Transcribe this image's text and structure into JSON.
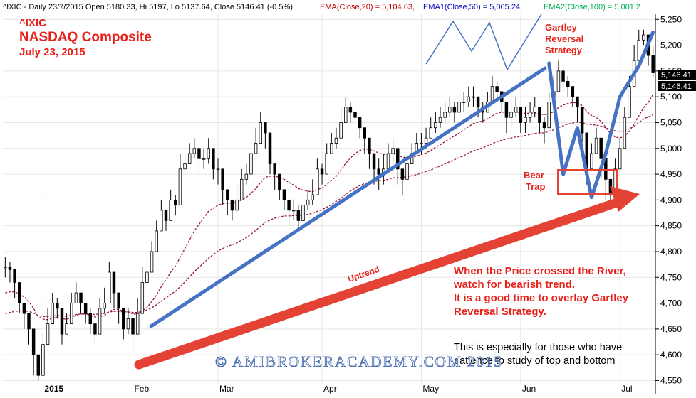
{
  "header": {
    "symbol": "^IXIC - Daily 23/7/2015 Open 5180.33, Hi 5197, Lo 5137.64, Close 5146.41 (-0.5%)",
    "ema20": "EMA(Close,20) = 5,104.63,",
    "ema50": "EMA1(Close,50) = 5,065.24,",
    "ema100": "EMA2(Close,100) = 5,001.2"
  },
  "title": {
    "ticker": "^IXIC",
    "name": "NASDAQ Composite",
    "date": "July 23, 2015"
  },
  "annotations": {
    "gartley_line1": "Gartley",
    "gartley_line2": "Reversal",
    "gartley_line3": "Strategy",
    "bear_line1": "Bear",
    "bear_line2": "Trap",
    "uptrend": "Uptrend",
    "river_1": "When the Price crossed the River,",
    "river_2": "watch for bearish trend.",
    "river_3": "It is a good time to overlay Gartley",
    "river_4": "Reversal Strategy.",
    "patience_1": "This is especially for those who have",
    "patience_2": "patience to study of top and bottom",
    "watermark": "© AMIBROKERACADEMY.COM 2015",
    "price_label_1": "5,146.41",
    "price_label_2": "5,146.41"
  },
  "colors": {
    "ema20": "#c00000",
    "ema50": "#0000c0",
    "ema100": "#00b050",
    "trend_blue": "#4472c4",
    "arrow_red": "#e34234",
    "annotation_red": "#e8201a",
    "ema_line": "#9b1b3a"
  },
  "chart_data": {
    "type": "candlestick",
    "title": "NASDAQ Composite",
    "y_axis_side": "right",
    "ylim": [
      4530,
      5260
    ],
    "y_ticks": [
      4550,
      4600,
      4650,
      4700,
      4750,
      4800,
      4850,
      4900,
      4950,
      5000,
      5050,
      5100,
      5150,
      5200,
      5250
    ],
    "y_tick_labels": [
      "4,550",
      "4,600",
      "4,650",
      "4,700",
      "4,750",
      "4,800",
      "4,850",
      "4,900",
      "4,950",
      "5,000",
      "5,050",
      "5,100",
      "5,150",
      "5,200",
      "5,250"
    ],
    "x_labels": [
      "2015",
      "Feb",
      "Mar",
      "Apr",
      "May",
      "Jun",
      "Jul"
    ],
    "x_label_index": [
      8,
      27,
      45,
      67,
      88,
      109,
      130
    ],
    "grid": true,
    "last_close": 5146.41,
    "closes": [
      4770,
      4765,
      4740,
      4700,
      4680,
      4650,
      4600,
      4560,
      4620,
      4660,
      4700,
      4690,
      4640,
      4660,
      4700,
      4720,
      4700,
      4680,
      4660,
      4640,
      4690,
      4700,
      4760,
      4720,
      4690,
      4650,
      4670,
      4640,
      4680,
      4740,
      4760,
      4800,
      4840,
      4880,
      4860,
      4900,
      4890,
      4960,
      4970,
      4990,
      5000,
      4980,
      4980,
      5000,
      4960,
      4960,
      4920,
      4900,
      4880,
      4900,
      4940,
      4950,
      4990,
      5010,
      5050,
      5030,
      4970,
      4950,
      4920,
      4900,
      4880,
      4880,
      4860,
      4890,
      4900,
      4910,
      4960,
      4950,
      4990,
      5010,
      5020,
      5050,
      5080,
      5070,
      5060,
      5040,
      5020,
      4990,
      4960,
      4950,
      4960,
      4990,
      5000,
      4960,
      4940,
      4970,
      4990,
      5010,
      5010,
      5020,
      5040,
      5050,
      5060,
      5070,
      5080,
      5070,
      5090,
      5090,
      5100,
      5100,
      5080,
      5070,
      5090,
      5120,
      5110,
      5090,
      5060,
      5070,
      5080,
      5050,
      5060,
      5070,
      5080,
      5050,
      5040,
      5090,
      5110,
      5150,
      5130,
      5120,
      5100,
      5080,
      5030,
      4960,
      4990,
      5020,
      4980,
      4940,
      4910,
      4960,
      5000,
      5060,
      5120,
      5170,
      5210,
      5220,
      5180,
      5146.41
    ],
    "highs": [
      4790,
      4780,
      4760,
      4720,
      4700,
      4670,
      4630,
      4600,
      4640,
      4690,
      4720,
      4710,
      4670,
      4680,
      4720,
      4740,
      4720,
      4700,
      4690,
      4660,
      4710,
      4730,
      4780,
      4750,
      4700,
      4680,
      4690,
      4670,
      4710,
      4770,
      4780,
      4820,
      4860,
      4900,
      4880,
      4920,
      4910,
      4990,
      4990,
      5010,
      5020,
      5000,
      5000,
      5020,
      4990,
      4980,
      4940,
      4920,
      4900,
      4930,
      4960,
      4970,
      5010,
      5040,
      5070,
      5050,
      4990,
      4970,
      4940,
      4920,
      4900,
      4900,
      4890,
      4910,
      4920,
      4940,
      4980,
      4970,
      5010,
      5030,
      5040,
      5080,
      5100,
      5090,
      5080,
      5060,
      5040,
      5010,
      4980,
      4980,
      4990,
      5010,
      5020,
      4990,
      4960,
      4990,
      5010,
      5030,
      5030,
      5040,
      5060,
      5070,
      5080,
      5090,
      5100,
      5090,
      5110,
      5110,
      5120,
      5120,
      5100,
      5090,
      5110,
      5140,
      5130,
      5110,
      5080,
      5090,
      5100,
      5080,
      5080,
      5090,
      5100,
      5080,
      5060,
      5110,
      5140,
      5170,
      5160,
      5140,
      5120,
      5100,
      5060,
      4990,
      5010,
      5040,
      5010,
      4970,
      4940,
      4980,
      5020,
      5080,
      5140,
      5200,
      5230,
      5230,
      5210,
      5197
    ],
    "lows": [
      4750,
      4740,
      4710,
      4680,
      4650,
      4620,
      4560,
      4550,
      4590,
      4640,
      4680,
      4670,
      4620,
      4640,
      4680,
      4700,
      4680,
      4660,
      4640,
      4620,
      4660,
      4680,
      4740,
      4690,
      4660,
      4630,
      4640,
      4610,
      4660,
      4720,
      4740,
      4780,
      4820,
      4850,
      4840,
      4880,
      4870,
      4940,
      4950,
      4970,
      4980,
      4950,
      4960,
      4970,
      4940,
      4930,
      4890,
      4870,
      4860,
      4880,
      4920,
      4930,
      4970,
      4990,
      5030,
      5000,
      4950,
      4920,
      4900,
      4880,
      4850,
      4860,
      4840,
      4870,
      4880,
      4890,
      4940,
      4930,
      4970,
      4990,
      5000,
      5030,
      5060,
      5050,
      5040,
      5020,
      4990,
      4960,
      4930,
      4920,
      4930,
      4960,
      4970,
      4930,
      4910,
      4950,
      4970,
      4990,
      4990,
      5000,
      5020,
      5030,
      5040,
      5050,
      5060,
      5050,
      5070,
      5070,
      5080,
      5080,
      5060,
      5050,
      5070,
      5100,
      5090,
      5070,
      5030,
      5040,
      5060,
      5030,
      5030,
      5050,
      5060,
      5030,
      5010,
      5070,
      5090,
      5130,
      5110,
      5100,
      5080,
      5050,
      5000,
      4930,
      4960,
      4990,
      4940,
      4900,
      4890,
      4930,
      4980,
      5040,
      5100,
      5150,
      5190,
      5200,
      5160,
      5137.64
    ],
    "ema_20": [
      4720,
      4722,
      4722,
      4718,
      4712,
      4703,
      4690,
      4674,
      4669,
      4668,
      4671,
      4673,
      4670,
      4669,
      4672,
      4677,
      4679,
      4679,
      4677,
      4673,
      4674,
      4676,
      4684,
      4688,
      4688,
      4684,
      4683,
      4679,
      4679,
      4685,
      4692,
      4703,
      4716,
      4732,
      4745,
      4760,
      4772,
      4789,
      4806,
      4823,
      4840,
      4853,
      4865,
      4878,
      4884,
      4890,
      4893,
      4894,
      4894,
      4896,
      4900,
      4905,
      4913,
      4922,
      4934,
      4944,
      4946,
      4946,
      4944,
      4940,
      4934,
      4929,
      4922,
      4919,
      4917,
      4916,
      4920,
      4923,
      4930,
      4938,
      4946,
      4958,
      4971,
      4981,
      4990,
      4996,
      4999,
      4998,
      4995,
      4991,
      4988,
      4989,
      4990,
      4987,
      4983,
      4982,
      4983,
      4985,
      4988,
      4991,
      4996,
      5002,
      5007,
      5013,
      5019,
      5024,
      5030,
      5036,
      5042,
      5048,
      5051,
      5053,
      5057,
      5063,
      5068,
      5070,
      5070,
      5070,
      5071,
      5069,
      5068,
      5068,
      5069,
      5067,
      5065,
      5067,
      5071,
      5079,
      5084,
      5087,
      5089,
      5088,
      5083,
      5071,
      5064,
      5060,
      5052,
      5041,
      5028,
      5022,
      5020,
      5024,
      5033,
      5047,
      5063,
      5079,
      5089,
      5104.63
    ],
    "ema_50": [
      4680,
      4682,
      4684,
      4685,
      4685,
      4684,
      4681,
      4676,
      4674,
      4674,
      4675,
      4676,
      4675,
      4675,
      4676,
      4678,
      4679,
      4679,
      4679,
      4678,
      4679,
      4680,
      4683,
      4684,
      4684,
      4683,
      4683,
      4682,
      4682,
      4684,
      4687,
      4691,
      4697,
      4704,
      4710,
      4717,
      4723,
      4732,
      4741,
      4751,
      4761,
      4770,
      4778,
      4787,
      4794,
      4801,
      4806,
      4810,
      4813,
      4817,
      4822,
      4827,
      4834,
      4841,
      4849,
      4857,
      4861,
      4865,
      4867,
      4869,
      4869,
      4870,
      4870,
      4871,
      4872,
      4874,
      4878,
      4881,
      4886,
      4891,
      4897,
      4903,
      4911,
      4917,
      4923,
      4928,
      4932,
      4934,
      4936,
      4937,
      4938,
      4940,
      4943,
      4943,
      4944,
      4945,
      4947,
      4949,
      4952,
      4955,
      4958,
      4962,
      4966,
      4970,
      4974,
      4978,
      4982,
      4986,
      4991,
      4995,
      4998,
      5001,
      5005,
      5009,
      5013,
      5016,
      5018,
      5020,
      5022,
      5023,
      5025,
      5027,
      5029,
      5030,
      5030,
      5033,
      5036,
      5040,
      5044,
      5047,
      5049,
      5051,
      5050,
      5047,
      5046,
      5045,
      5043,
      5040,
      5036,
      5034,
      5033,
      5034,
      5038,
      5043,
      5050,
      5057,
      5061,
      5065.24
    ],
    "gartley_points_x": [
      115,
      118,
      121,
      124,
      127,
      130,
      134,
      137
    ],
    "gartley_points_y": [
      5165,
      4950,
      5040,
      4905,
      4990,
      5100,
      5160,
      5225
    ]
  }
}
